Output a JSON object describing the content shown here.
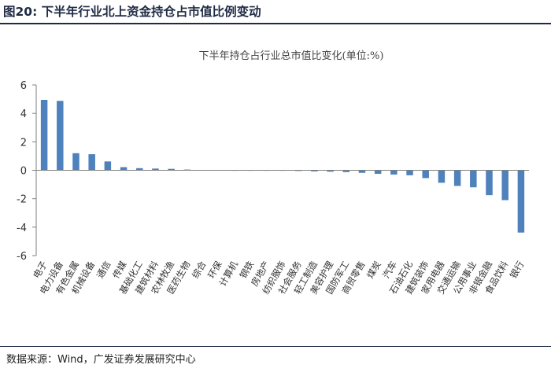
{
  "figure": {
    "title": "图20:  下半年行业北上资金持仓占市值比例变动",
    "source": "数据来源：Wind，广发证券发展研究中心"
  },
  "colors": {
    "bar": "#4f81bd",
    "axis": "#7f7f7f",
    "rule": "#1f2a44"
  },
  "chart_data": {
    "type": "bar",
    "title": "下半年持仓占行业总市值比变化(单位:%)",
    "xlabel": "",
    "ylabel": "",
    "ylim": [
      -6,
      6
    ],
    "yticks": [
      6,
      4,
      2,
      0,
      -2,
      -4,
      -6
    ],
    "grid": false,
    "categories": [
      "电子",
      "电力设备",
      "有色金属",
      "机械设备",
      "通信",
      "传媒",
      "基础化工",
      "建筑材料",
      "农林牧渔",
      "医药生物",
      "综合",
      "环保",
      "计算机",
      "钢铁",
      "房地产",
      "纺织服饰",
      "社会服务",
      "轻工制造",
      "美容护理",
      "国防军工",
      "商贸零售",
      "煤炭",
      "汽车",
      "石油石化",
      "建筑装饰",
      "家用电器",
      "交通运输",
      "公用事业",
      "非银金融",
      "食品饮料",
      "银行"
    ],
    "values": [
      4.95,
      4.88,
      1.2,
      1.13,
      0.62,
      0.22,
      0.15,
      0.12,
      0.1,
      0.05,
      0.02,
      0.01,
      0.0,
      -0.01,
      -0.02,
      -0.03,
      -0.05,
      -0.08,
      -0.1,
      -0.13,
      -0.18,
      -0.25,
      -0.3,
      -0.35,
      -0.55,
      -0.88,
      -1.1,
      -1.2,
      -1.75,
      -2.1,
      -4.38
    ]
  }
}
